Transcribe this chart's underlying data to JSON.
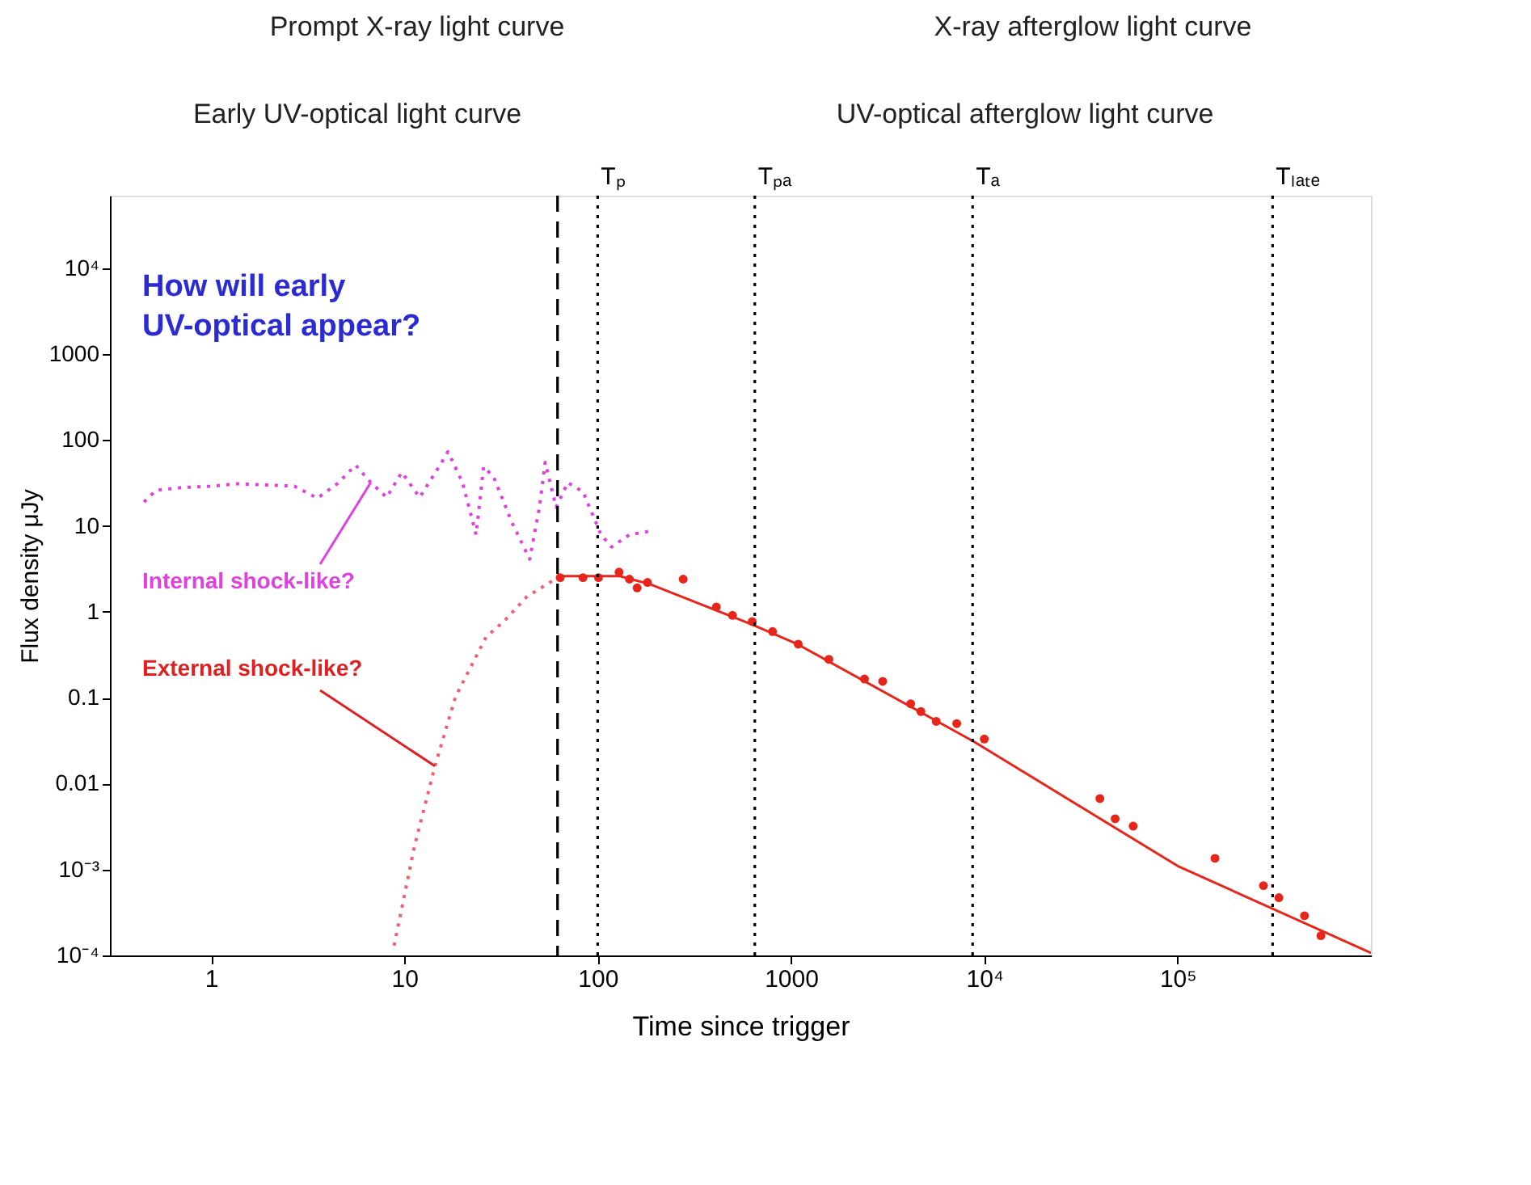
{
  "chart_data": {
    "type": "line",
    "xlabel": "Time since trigger",
    "ylabel": "Flux density μJy",
    "log": "xy",
    "grid": false,
    "xlim": [
      0.3,
      1000000
    ],
    "ylim": [
      0.0001,
      70000
    ],
    "xticks": [
      1,
      10,
      100,
      1000,
      {
        "value": 10000,
        "label": "10⁴"
      },
      {
        "value": 100000,
        "label": "10⁵"
      }
    ],
    "yticks": [
      {
        "value": 0.0001,
        "label": "10⁻⁴"
      },
      {
        "value": 0.001,
        "label": "10⁻³"
      },
      0.01,
      0.1,
      1,
      10,
      100,
      1000,
      {
        "value": 10000,
        "label": "10⁴"
      }
    ],
    "series": [
      {
        "line_style": "dotted",
        "color": "#e040e0",
        "x": [
          0.45,
          0.52,
          0.71,
          1.02,
          1.34,
          1.93,
          2.7,
          3.55,
          4.5,
          5.6,
          6.7,
          8.1,
          9.7,
          12,
          15.3,
          16.8,
          20,
          23.5,
          25.7,
          29,
          36,
          44.5,
          50,
          53.5,
          61,
          70,
          84,
          104,
          118,
          146,
          186
        ],
        "values": [
          19,
          26,
          28,
          29,
          31,
          30,
          29,
          21,
          31,
          51,
          32,
          21.5,
          42,
          21.5,
          51,
          73,
          32,
          7.9,
          49,
          37,
          11,
          4.1,
          16.5,
          55,
          16.5,
          32,
          25,
          7.9,
          5.7,
          7.9,
          8.7
        ]
      },
      {
        "line_style": "dotted",
        "color": "#f06070",
        "x": [
          8.85,
          11.3,
          14.4,
          18.4,
          26.5,
          33,
          43,
          62
        ],
        "values": [
          0.00013,
          0.0019,
          0.016,
          0.103,
          0.51,
          0.79,
          1.5,
          2.5
        ]
      },
      {
        "line_style": "solid",
        "color": "#e8251a",
        "x": [
          62,
          130,
          186,
          611,
          1080,
          8800,
          100000,
          1000000
        ],
        "values": [
          2.6,
          2.6,
          2.1,
          0.73,
          0.42,
          0.031,
          0.0011,
          0.000107
        ]
      },
      {
        "type": "scatter",
        "marker": "circle",
        "color": "#e8251a",
        "x": [
          64,
          84,
          101,
          129,
          146,
          160,
          181,
          277,
          411,
          498,
          630,
          803,
          1090,
          1570,
          2400,
          2980,
          4160,
          4700,
          5640,
          7200,
          10000,
          39600,
          47500,
          58900,
          156000,
          278000,
          334000,
          453000,
          551000
        ],
        "values": [
          2.5,
          2.5,
          2.5,
          2.9,
          2.4,
          1.9,
          2.2,
          2.4,
          1.14,
          0.91,
          0.77,
          0.59,
          0.42,
          0.28,
          0.165,
          0.155,
          0.085,
          0.069,
          0.053,
          0.05,
          0.033,
          0.0067,
          0.0039,
          0.0032,
          0.00135,
          0.00065,
          0.00047,
          0.00029,
          0.00017
        ]
      }
    ],
    "ref_lines": [
      {
        "axis": "x",
        "value": 62,
        "label": null,
        "line_style": "dashed",
        "color": "#000000"
      },
      {
        "axis": "x",
        "value": 100,
        "label": "Tₚ",
        "line_style": "dotted",
        "color": "#000000"
      },
      {
        "axis": "x",
        "value": 650,
        "label": "Tₚₐ",
        "line_style": "dotted",
        "color": "#000000"
      },
      {
        "axis": "x",
        "value": 8700,
        "label": "Tₐ",
        "line_style": "dotted",
        "color": "#000000"
      },
      {
        "axis": "x",
        "value": 310000,
        "label": "Tₗₐₜₑ",
        "line_style": "dotted",
        "color": "#000000"
      }
    ],
    "annotations": [
      "Prompt X-ray light curve",
      "X-ray afterglow light curve",
      "Early UV-optical light curve",
      "UV-optical afterglow light curve",
      "How will early\nUV-optical appear?",
      {
        "text": "Internal shock-like?",
        "x": 6.7,
        "y": 32
      },
      {
        "text": "External shock-like?",
        "x": 14.4,
        "y": 0.016
      }
    ]
  }
}
